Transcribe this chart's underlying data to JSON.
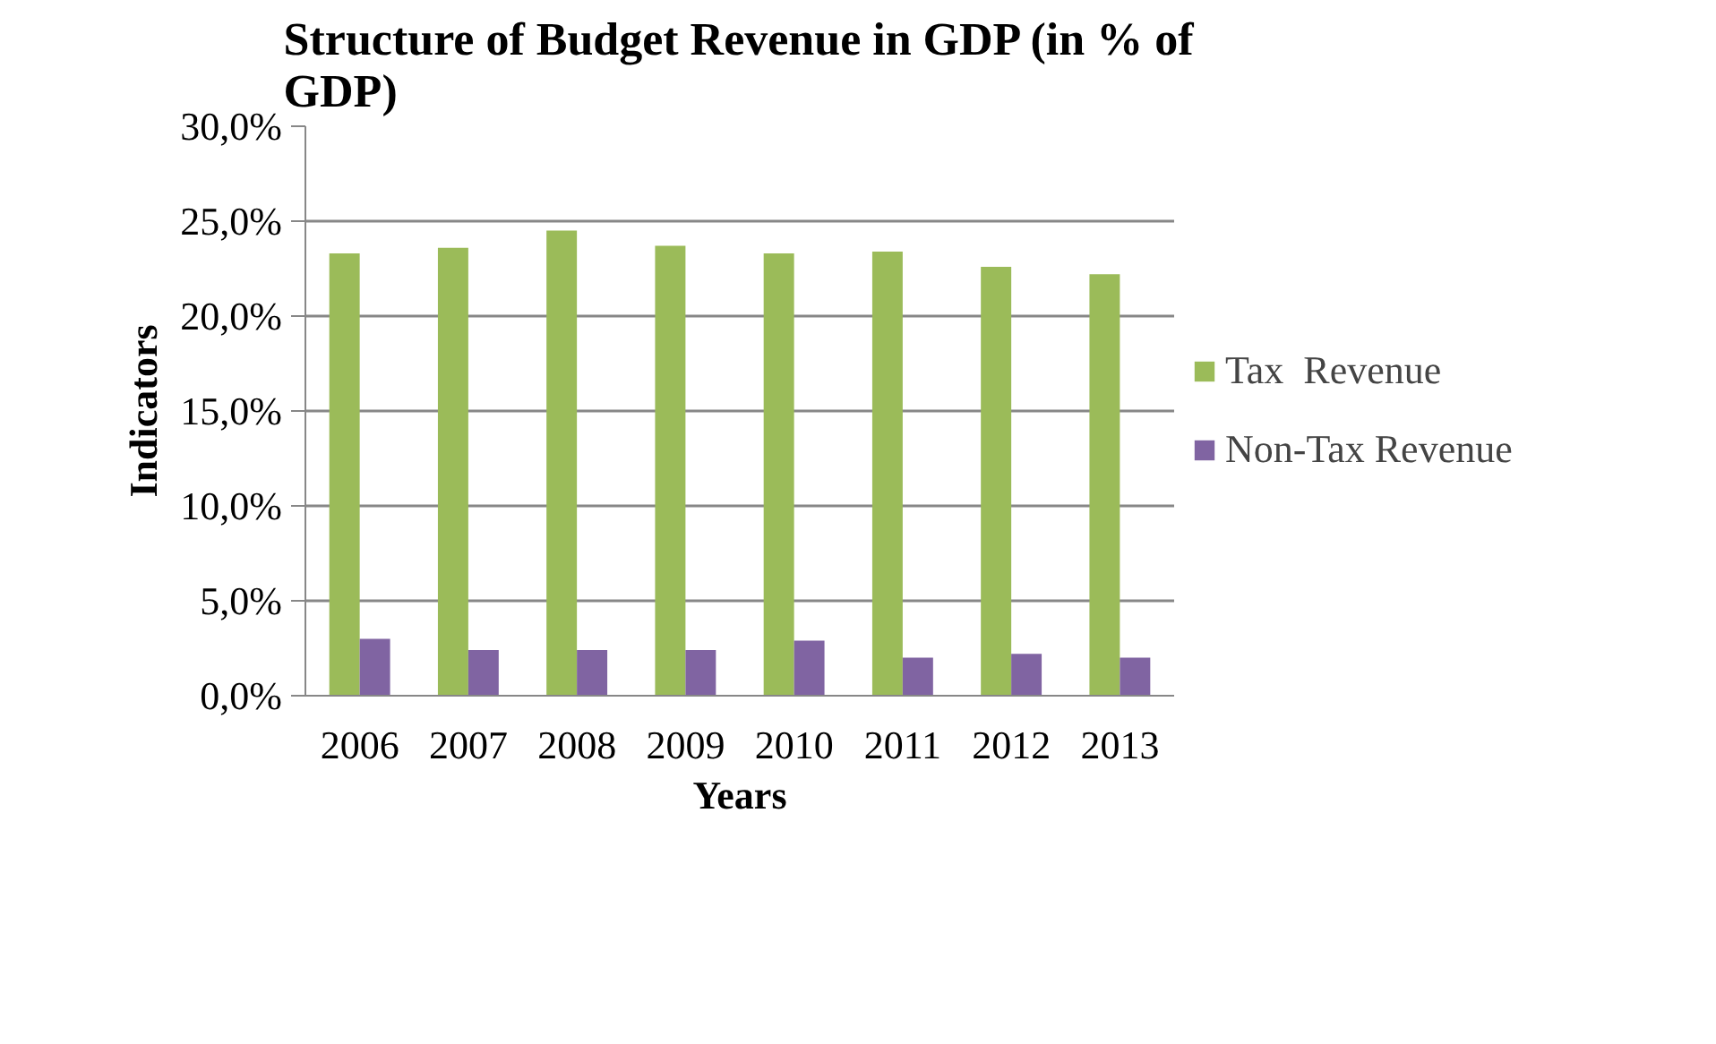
{
  "chart_data": {
    "type": "bar",
    "title": "Structure of Budget Revenue in GDP (in % of GDP)",
    "xlabel": "Years",
    "ylabel": "Indicators",
    "categories": [
      "2006",
      "2007",
      "2008",
      "2009",
      "2010",
      "2011",
      "2012",
      "2013"
    ],
    "series": [
      {
        "name": "Tax  Revenue",
        "color": "#9bbb59",
        "values": [
          23.3,
          23.6,
          24.5,
          23.7,
          23.3,
          23.4,
          22.6,
          22.2
        ]
      },
      {
        "name": "Non-Tax Revenue",
        "color": "#8064a2",
        "values": [
          3.0,
          2.4,
          2.4,
          2.4,
          2.9,
          2.0,
          2.2,
          2.0
        ]
      }
    ],
    "ylim": [
      0,
      30
    ],
    "yticks": [
      {
        "value": 0,
        "label": "0,0%"
      },
      {
        "value": 5,
        "label": "5,0%"
      },
      {
        "value": 10,
        "label": "10,0%"
      },
      {
        "value": 15,
        "label": "15,0%"
      },
      {
        "value": 20,
        "label": "20,0%"
      },
      {
        "value": 25,
        "label": "25,0%"
      },
      {
        "value": 30,
        "label": "30,0%"
      }
    ],
    "grid": "y",
    "legend": "right"
  }
}
